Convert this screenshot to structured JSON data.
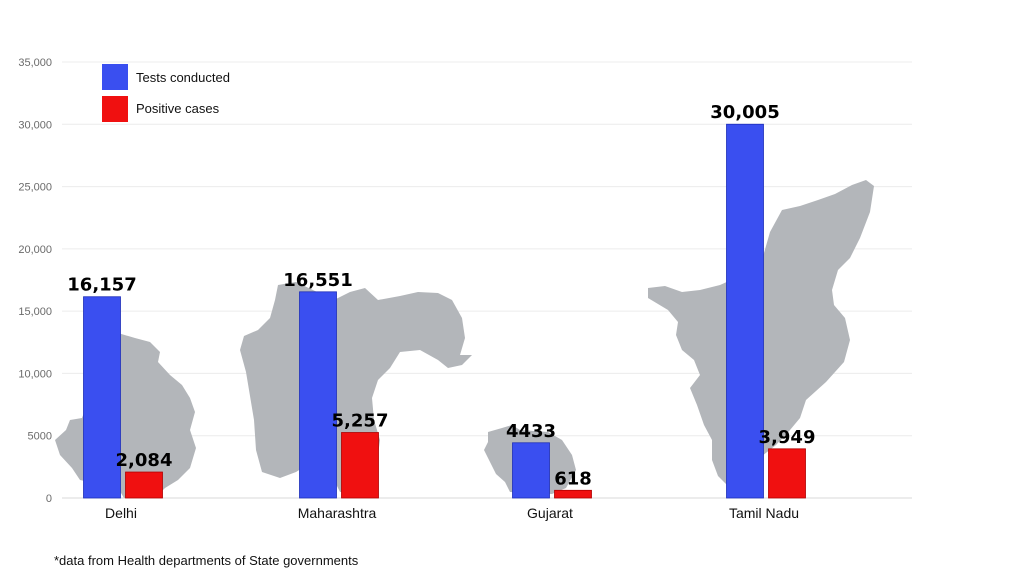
{
  "chart_data": {
    "type": "bar",
    "title": "",
    "xlabel": "",
    "ylabel": "",
    "ylim": [
      0,
      35000
    ],
    "yticks": [
      "0",
      "5000",
      "10,000",
      "15,000",
      "20,000",
      "25,000",
      "30,000",
      "35,000"
    ],
    "categories": [
      "Delhi",
      "Maharashtra",
      "Gujarat",
      "Tamil Nadu"
    ],
    "series": [
      {
        "name": "Tests conducted",
        "color": "#3a4ff0",
        "values": [
          16157,
          16551,
          4433,
          30005
        ],
        "labels": [
          "16,157",
          "16,551",
          "4433",
          "30,005"
        ]
      },
      {
        "name": "Positive cases",
        "color": "#f01010",
        "values": [
          2084,
          5257,
          618,
          3949
        ],
        "labels": [
          "2,084",
          "5,257",
          "618",
          "3,949"
        ]
      }
    ],
    "legend": "top-left",
    "grid": true,
    "background_shapes": "state map silhouettes"
  },
  "footnote": "*data from Health departments of State governments"
}
